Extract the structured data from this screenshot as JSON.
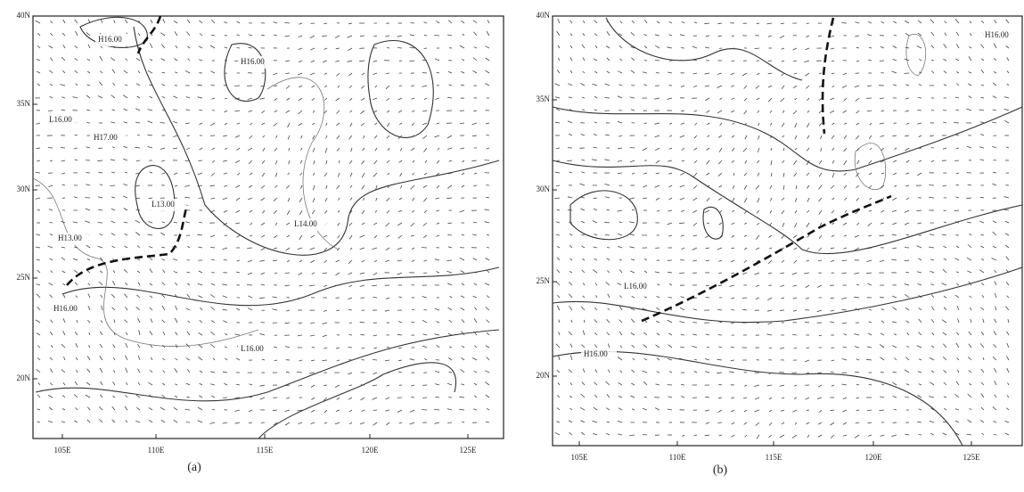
{
  "panels": [
    {
      "caption": "(a)",
      "y_labels": [
        "40N",
        "35N",
        "30N",
        "25N",
        "20N"
      ],
      "x_labels": [
        "105E",
        "110E",
        "115E",
        "120E",
        "125E"
      ],
      "features": [
        "H16.00",
        "H16.00",
        "H17.00",
        "L16.00",
        "L13.00",
        "L14.00",
        "H13.00",
        "H16.00",
        "L16.00"
      ]
    },
    {
      "caption": "(b)",
      "y_labels": [
        "40N",
        "35N",
        "30N",
        "25N",
        "20N"
      ],
      "x_labels": [
        "105E",
        "110E",
        "115E",
        "120E",
        "125E"
      ],
      "features": [
        "H16.00",
        "L16.00",
        "H16.00"
      ]
    }
  ]
}
